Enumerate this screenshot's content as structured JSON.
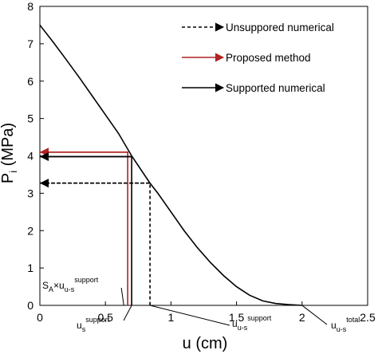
{
  "chart_data": {
    "type": "line",
    "xlabel": "u (cm)",
    "ylabel": {
      "main": "P",
      "sub": "i",
      "unit": " (MPa)"
    },
    "xlim": [
      0,
      2.5
    ],
    "ylim": [
      0,
      8
    ],
    "x_ticks": [
      "0",
      "0.5",
      "1",
      "1.5",
      "2",
      "2.5"
    ],
    "y_ticks": [
      "0",
      "1",
      "2",
      "3",
      "4",
      "5",
      "6",
      "7",
      "8"
    ],
    "grid": false,
    "legend_position": "top-right",
    "series": [
      {
        "name": "Unsuppored numerical",
        "style": "dashed",
        "color": "#000000",
        "x": [
          0,
          0.84,
          0.84
        ],
        "y": [
          3.27,
          3.27,
          0
        ]
      },
      {
        "name": "Proposed method",
        "style": "solid",
        "color": "#b22222",
        "x": [
          0,
          0.67,
          0.67
        ],
        "y": [
          4.1,
          4.1,
          0
        ]
      },
      {
        "name": "Supported numerical",
        "style": "solid",
        "color": "#000000",
        "x": [
          0,
          0.1,
          0.2,
          0.3,
          0.4,
          0.5,
          0.6,
          0.7,
          0.84,
          0.9,
          1.0,
          1.1,
          1.2,
          1.3,
          1.4,
          1.5,
          1.6,
          1.7,
          1.8,
          1.9,
          2.0
        ],
        "y": [
          7.5,
          7.05,
          6.58,
          6.1,
          5.6,
          5.1,
          4.6,
          4.0,
          3.27,
          3.0,
          2.5,
          2.0,
          1.55,
          1.15,
          0.8,
          0.5,
          0.27,
          0.12,
          0.05,
          0.02,
          0.0
        ]
      },
      {
        "name": "",
        "style": "solid",
        "color": "#000000",
        "x": [
          0,
          0.7,
          0.7
        ],
        "y": [
          3.98,
          3.98,
          0
        ]
      }
    ],
    "annotations": [
      {
        "id": "sa",
        "main": "S",
        "sub": "A",
        "rest": "×u",
        "sub2": "u-s",
        "sup": "support",
        "target_x": 0.67,
        "leader_end_x": 0.64,
        "leader_end_y": 0.0
      },
      {
        "id": "us",
        "main": "u",
        "sub": "s",
        "sup": "support",
        "target_x": 0.7
      },
      {
        "id": "uus",
        "main": "u",
        "sub": "u-s",
        "sup": "support",
        "target_x": 0.84
      },
      {
        "id": "total",
        "main": "u",
        "sub": "u-s",
        "sup": "total",
        "target_x": 2.0
      }
    ]
  }
}
